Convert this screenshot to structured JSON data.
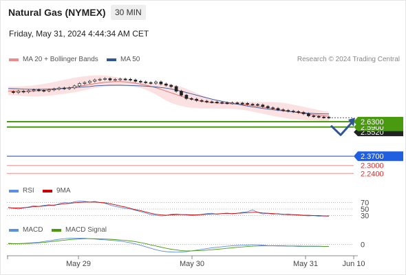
{
  "header": {
    "title": "Natural Gas (NYMEX)",
    "timeframe": "30 MIN",
    "datetime": "Friday, May 31, 2024 4:44:34 AM CET"
  },
  "legend": {
    "ma20_label": "MA 20 + Bollinger Bands",
    "ma50_label": "MA 50",
    "copyright": "Research © 2024 Trading Central",
    "ma20_color": "#f08a8a",
    "ma50_color": "#2f5597"
  },
  "rsi_legend": {
    "rsi_label": "RSI",
    "ma_label": "9MA",
    "rsi_color": "#5b8ee6",
    "ma_color": "#cc0000"
  },
  "macd_legend": {
    "macd_label": "MACD",
    "signal_label": "MACD Signal",
    "macd_color": "#5b8ee6",
    "signal_color": "#4a9a10"
  },
  "x_axis": {
    "labels": [
      "May 29",
      "May 30",
      "May 31",
      "Jun 10"
    ]
  },
  "chart_data": [
    {
      "type": "line",
      "title": "",
      "ylim": [
        2.2,
        3.05
      ],
      "price_series": [
        2.856,
        2.85,
        2.86,
        2.855,
        2.864,
        2.87,
        2.866,
        2.862,
        2.87,
        2.876,
        2.884,
        2.88,
        2.885,
        2.9,
        2.918,
        2.925,
        2.935,
        2.945,
        2.95,
        2.955,
        2.945,
        2.948,
        2.952,
        2.95,
        2.945,
        2.935,
        2.93,
        2.925,
        2.92,
        2.93,
        2.915,
        2.905,
        2.895,
        2.86,
        2.83,
        2.805,
        2.8,
        2.79,
        2.785,
        2.78,
        2.778,
        2.775,
        2.772,
        2.77,
        2.772,
        2.77,
        2.768,
        2.762,
        2.76,
        2.756,
        2.745,
        2.735,
        2.73,
        2.72,
        2.715,
        2.71,
        2.706,
        2.7,
        2.69,
        2.674,
        2.67,
        2.665,
        2.664,
        2.66
      ],
      "ma50": [
        2.88,
        2.879,
        2.878,
        2.876,
        2.875,
        2.874,
        2.874,
        2.875,
        2.876,
        2.878,
        2.88,
        2.883,
        2.885,
        2.888,
        2.89,
        2.893,
        2.895,
        2.9,
        2.902,
        2.904,
        2.905,
        2.905,
        2.905,
        2.904,
        2.903,
        2.901,
        2.9,
        2.898,
        2.895,
        2.892,
        2.888,
        2.883,
        2.877,
        2.869,
        2.86,
        2.85,
        2.84,
        2.83,
        2.82,
        2.81,
        2.8,
        2.792,
        2.784,
        2.776,
        2.769,
        2.762,
        2.755,
        2.748,
        2.742,
        2.736,
        2.73,
        2.725,
        2.72,
        2.716,
        2.712,
        2.708,
        2.704,
        2.7,
        2.697,
        2.694,
        2.692,
        2.69,
        2.689,
        2.688
      ],
      "ma20": [
        2.862,
        2.861,
        2.86,
        2.859,
        2.86,
        2.862,
        2.864,
        2.866,
        2.869,
        2.872,
        2.876,
        2.881,
        2.886,
        2.892,
        2.898,
        2.904,
        2.911,
        2.917,
        2.922,
        2.927,
        2.93,
        2.932,
        2.932,
        2.93,
        2.926,
        2.92,
        2.914,
        2.906,
        2.897,
        2.886,
        2.874,
        2.861,
        2.848,
        2.835,
        2.822,
        2.81,
        2.8,
        2.791,
        2.784,
        2.778,
        2.774,
        2.771,
        2.769,
        2.767,
        2.765,
        2.763,
        2.76,
        2.756,
        2.751,
        2.746,
        2.74,
        2.734,
        2.728,
        2.722,
        2.716,
        2.71,
        2.704,
        2.698,
        2.692,
        2.687,
        2.682,
        2.678,
        2.674,
        2.671
      ],
      "bb_upper": [
        2.895,
        2.894,
        2.895,
        2.897,
        2.9,
        2.904,
        2.909,
        2.915,
        2.922,
        2.93,
        2.938,
        2.946,
        2.954,
        2.962,
        2.968,
        2.973,
        2.977,
        2.979,
        2.98,
        2.978,
        2.974,
        2.968,
        2.96,
        2.951,
        2.942,
        2.934,
        2.928,
        2.924,
        2.922,
        2.92,
        2.918,
        2.915,
        2.91,
        2.902,
        2.892,
        2.878,
        2.862,
        2.846,
        2.83,
        2.815,
        2.802,
        2.792,
        2.786,
        2.783,
        2.782,
        2.781,
        2.78,
        2.779,
        2.778,
        2.778,
        2.778,
        2.779,
        2.778,
        2.776,
        2.772,
        2.766,
        2.758,
        2.75,
        2.742,
        2.734,
        2.726,
        2.718,
        2.71,
        2.704
      ],
      "bb_lower": [
        2.83,
        2.829,
        2.826,
        2.823,
        2.82,
        2.82,
        2.821,
        2.823,
        2.826,
        2.83,
        2.835,
        2.84,
        2.846,
        2.852,
        2.86,
        2.868,
        2.876,
        2.884,
        2.89,
        2.895,
        2.898,
        2.9,
        2.901,
        2.9,
        2.897,
        2.892,
        2.884,
        2.872,
        2.855,
        2.835,
        2.812,
        2.79,
        2.772,
        2.758,
        2.748,
        2.74,
        2.735,
        2.732,
        2.73,
        2.729,
        2.729,
        2.729,
        2.728,
        2.727,
        2.726,
        2.724,
        2.72,
        2.714,
        2.706,
        2.698,
        2.69,
        2.682,
        2.674,
        2.666,
        2.66,
        2.654,
        2.65,
        2.646,
        2.643,
        2.64,
        2.638,
        2.636,
        2.635,
        2.634
      ],
      "levels": [
        {
          "label": "2.6300",
          "value": 2.63,
          "color": "#4a9a10"
        },
        {
          "label": "2.5900",
          "value": 2.59,
          "color": "#4a9a10"
        },
        {
          "label": "2.5520",
          "value": 2.552,
          "color": "#222222"
        },
        {
          "label": "2.3700",
          "value": 2.37,
          "color": "#1f5fe0"
        },
        {
          "label": "2.3000",
          "value": 2.3,
          "color": "#e03030"
        },
        {
          "label": "2.2400",
          "value": 2.24,
          "color": "#e03030"
        }
      ],
      "forecast_path": [
        2.6,
        2.53,
        2.64
      ]
    },
    {
      "type": "line",
      "title": "",
      "ylim": [
        25,
        75
      ],
      "levels": [
        {
          "label": "70",
          "value": 70
        },
        {
          "label": "50",
          "value": 50
        },
        {
          "label": "30",
          "value": 30
        }
      ],
      "rsi": [
        55,
        52,
        50,
        53,
        56,
        60,
        58,
        61,
        63,
        60,
        66,
        70,
        68,
        72,
        74,
        73,
        71,
        73,
        70,
        67,
        62,
        58,
        55,
        52,
        50,
        46,
        42,
        38,
        33,
        31,
        29,
        30,
        34,
        35,
        33,
        32,
        30,
        31,
        34,
        36,
        37,
        34,
        36,
        38,
        35,
        37,
        40,
        42,
        47,
        40,
        35,
        37,
        34,
        36,
        33,
        35,
        32,
        31,
        30,
        29,
        30,
        28,
        29,
        28
      ],
      "rsi_ma": [
        54,
        53,
        53,
        54,
        55,
        57,
        58,
        59,
        61,
        62,
        64,
        66,
        67,
        69,
        70,
        71,
        71,
        71,
        70,
        69,
        66,
        63,
        59,
        56,
        52,
        48,
        45,
        41,
        37,
        34,
        32,
        31,
        32,
        33,
        33,
        33,
        32,
        32,
        33,
        34,
        35,
        35,
        36,
        36,
        36,
        37,
        38,
        39,
        40,
        40,
        38,
        37,
        36,
        35,
        34,
        33,
        33,
        32,
        31,
        31,
        30,
        30,
        29,
        29
      ]
    },
    {
      "type": "line",
      "title": "",
      "ylim": [
        -0.06,
        0.05
      ],
      "levels": [
        {
          "label": "0",
          "value": 0
        }
      ],
      "macd": [
        0.006,
        0.005,
        0.004,
        0.006,
        0.008,
        0.01,
        0.012,
        0.016,
        0.02,
        0.024,
        0.028,
        0.031,
        0.033,
        0.034,
        0.034,
        0.033,
        0.031,
        0.029,
        0.027,
        0.025,
        0.023,
        0.021,
        0.018,
        0.014,
        0.009,
        0.003,
        -0.004,
        -0.012,
        -0.02,
        -0.028,
        -0.034,
        -0.038,
        -0.04,
        -0.041,
        -0.04,
        -0.038,
        -0.034,
        -0.03,
        -0.026,
        -0.022,
        -0.018,
        -0.015,
        -0.012,
        -0.009,
        -0.007,
        -0.005,
        -0.004,
        -0.003,
        -0.001,
        -0.002,
        -0.004,
        -0.006,
        -0.007,
        -0.008,
        -0.008,
        -0.009,
        -0.009,
        -0.01,
        -0.01,
        -0.01,
        -0.01,
        -0.01,
        -0.01,
        -0.01
      ],
      "signal": [
        0.004,
        0.004,
        0.004,
        0.005,
        0.006,
        0.007,
        0.009,
        0.011,
        0.014,
        0.017,
        0.02,
        0.023,
        0.026,
        0.028,
        0.03,
        0.031,
        0.031,
        0.031,
        0.03,
        0.029,
        0.028,
        0.026,
        0.024,
        0.022,
        0.019,
        0.015,
        0.01,
        0.005,
        -0.002,
        -0.008,
        -0.014,
        -0.02,
        -0.025,
        -0.029,
        -0.032,
        -0.034,
        -0.034,
        -0.033,
        -0.032,
        -0.03,
        -0.028,
        -0.025,
        -0.023,
        -0.02,
        -0.018,
        -0.015,
        -0.013,
        -0.011,
        -0.009,
        -0.008,
        -0.007,
        -0.007,
        -0.007,
        -0.007,
        -0.007,
        -0.008,
        -0.008,
        -0.008,
        -0.009,
        -0.009,
        -0.009,
        -0.009,
        -0.01,
        -0.01
      ]
    }
  ]
}
